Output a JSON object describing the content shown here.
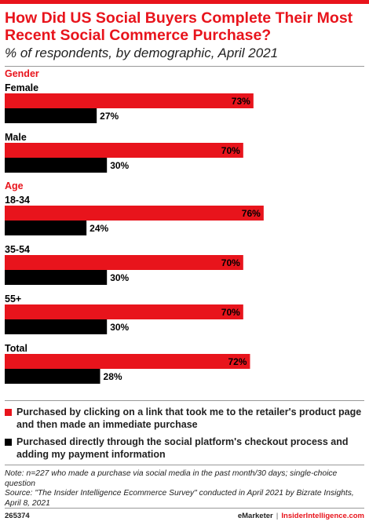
{
  "header": {
    "title": "How Did US Social Buyers Complete Their Most Recent Social Commerce Purchase?",
    "subtitle": "% of respondents, by demographic, April 2021"
  },
  "colors": {
    "accent": "#e8141c",
    "series1": "#e8141c",
    "series2": "#000000",
    "group_heading": "#e8141c"
  },
  "chart_data": {
    "type": "bar",
    "orientation": "horizontal",
    "xlim": [
      0,
      100
    ],
    "value_suffix": "%",
    "groups": [
      {
        "heading": "Gender",
        "categories": [
          {
            "label": "Female",
            "values": [
              73,
              27
            ]
          },
          {
            "label": "Male",
            "values": [
              70,
              30
            ]
          }
        ]
      },
      {
        "heading": "Age",
        "categories": [
          {
            "label": "18-34",
            "values": [
              76,
              24
            ]
          },
          {
            "label": "35-54",
            "values": [
              70,
              30
            ]
          },
          {
            "label": "55+",
            "values": [
              70,
              30
            ]
          }
        ]
      },
      {
        "heading": "",
        "categories": [
          {
            "label": "Total",
            "values": [
              72,
              28
            ]
          }
        ]
      }
    ],
    "series": [
      {
        "name": "Purchased by clicking on a link that took me to the retailer's product page and then made an immediate purchase",
        "color": "#e8141c"
      },
      {
        "name": "Purchased directly through the social platform's checkout process and adding my payment information",
        "color": "#000000"
      }
    ],
    "legend": "bottom"
  },
  "footer": {
    "note": "Note: n=227 who made a purchase via social media in the past month/30 days; single-choice question",
    "source": "Source: \"The Insider Intelligence Ecommerce Survey\" conducted in April 2021 by Bizrate Insights, April 8, 2021",
    "chart_id": "265374",
    "brand_left": "eMarketer",
    "brand_sep": "|",
    "brand_right": "InsiderIntelligence.com"
  }
}
